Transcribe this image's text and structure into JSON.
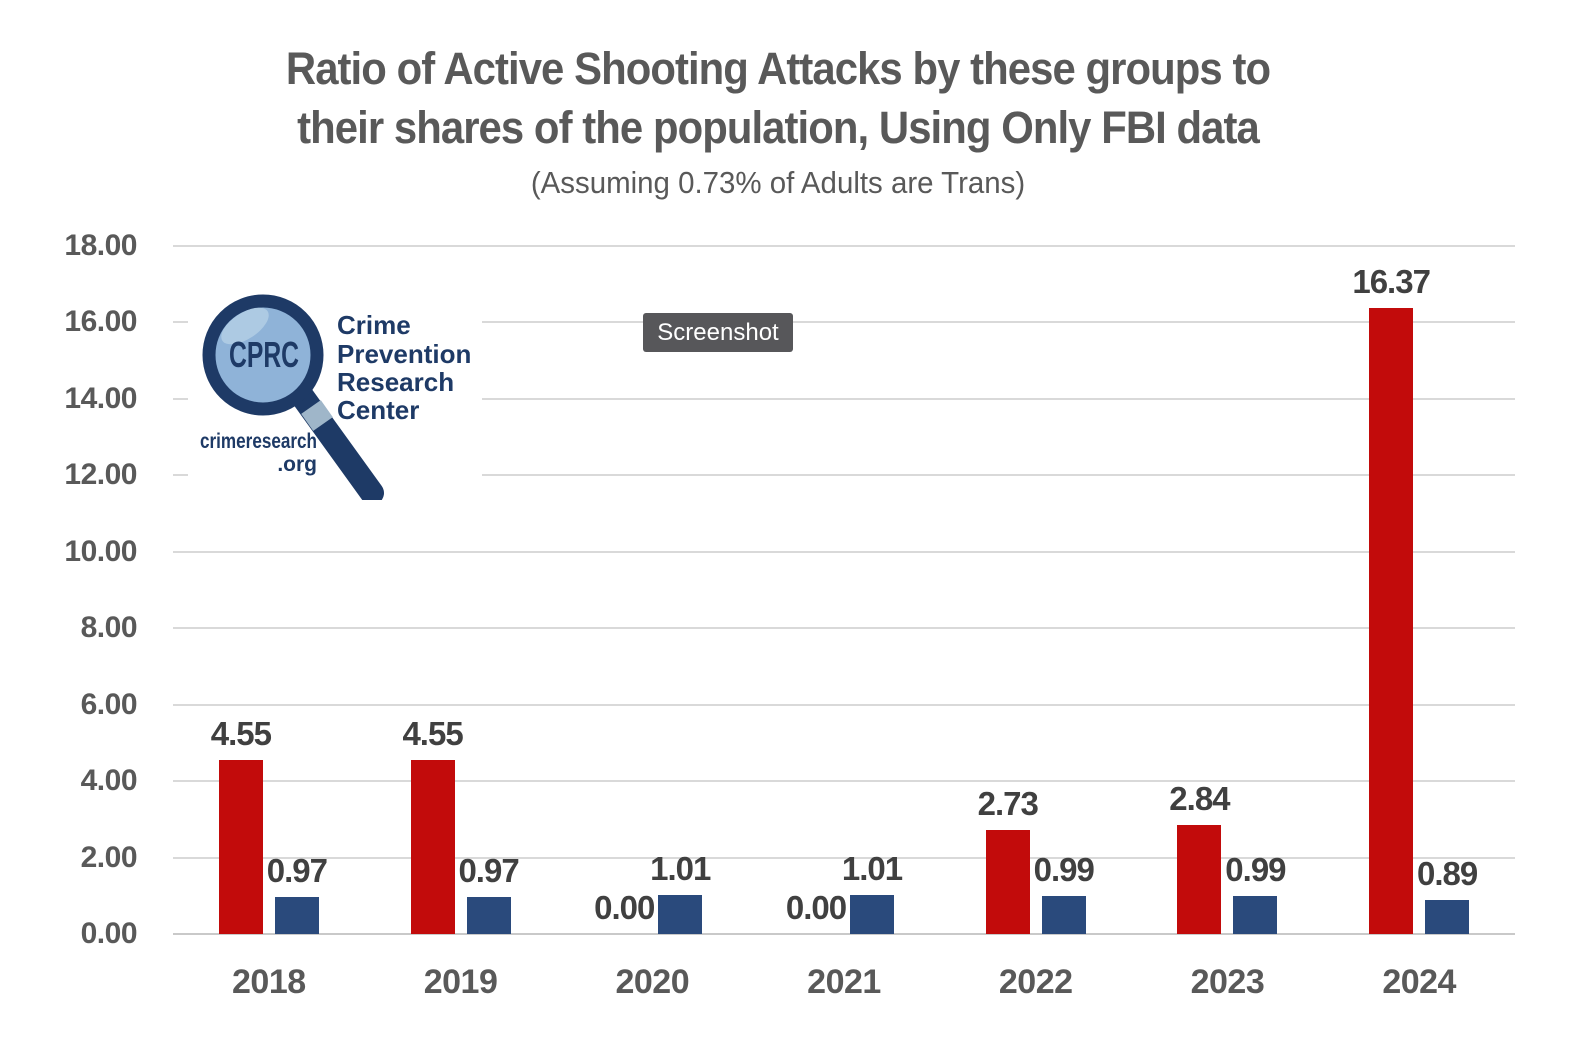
{
  "title": {
    "line1": "Ratio of Active Shooting Attacks by these groups to",
    "line2": "their shares of the population, Using Only FBI data",
    "subtitle": "(Assuming 0.73% of Adults are Trans)"
  },
  "screenshot_badge": {
    "label": "Screenshot"
  },
  "logo": {
    "acronym": "CPRC",
    "org_lines": [
      "Crime",
      "Prevention",
      "Research",
      "Center"
    ],
    "url_top": "crimeresearch",
    "url_bottom": ".org"
  },
  "colors": {
    "bar_red": "#C20B0B",
    "bar_blue": "#2A4A7C",
    "gridline": "#D9D9D9",
    "axis_text": "#595959",
    "data_label": "#404040",
    "title_text": "#595959",
    "badge_bg": "#57575A",
    "badge_text": "#FFFFFF",
    "logo_navy": "#1E3A66",
    "logo_lens_blue": "#8FB3D8"
  },
  "chart_data": {
    "type": "bar",
    "title": "Ratio of Active Shooting Attacks by these groups to their shares of the population, Using Only FBI data",
    "subtitle": "(Assuming 0.73% of Adults are Trans)",
    "categories": [
      "2018",
      "2019",
      "2020",
      "2021",
      "2022",
      "2023",
      "2024"
    ],
    "series": [
      {
        "name": "red",
        "color": "#C20B0B",
        "values": [
          4.55,
          4.55,
          0.0,
          0.0,
          2.73,
          2.84,
          16.37
        ]
      },
      {
        "name": "blue",
        "color": "#2A4A7C",
        "values": [
          0.97,
          0.97,
          1.01,
          1.01,
          0.99,
          0.99,
          0.89
        ]
      }
    ],
    "data_label_decimals": 2,
    "xlabel": "",
    "ylabel": "",
    "ylim": [
      0,
      18
    ],
    "y_ticks": [
      0,
      2,
      4,
      6,
      8,
      10,
      12,
      14,
      16,
      18
    ],
    "y_tick_labels": [
      "0.00",
      "2.00",
      "4.00",
      "6.00",
      "8.00",
      "10.00",
      "12.00",
      "14.00",
      "16.00",
      "18.00"
    ],
    "grid": true,
    "legend": false
  }
}
